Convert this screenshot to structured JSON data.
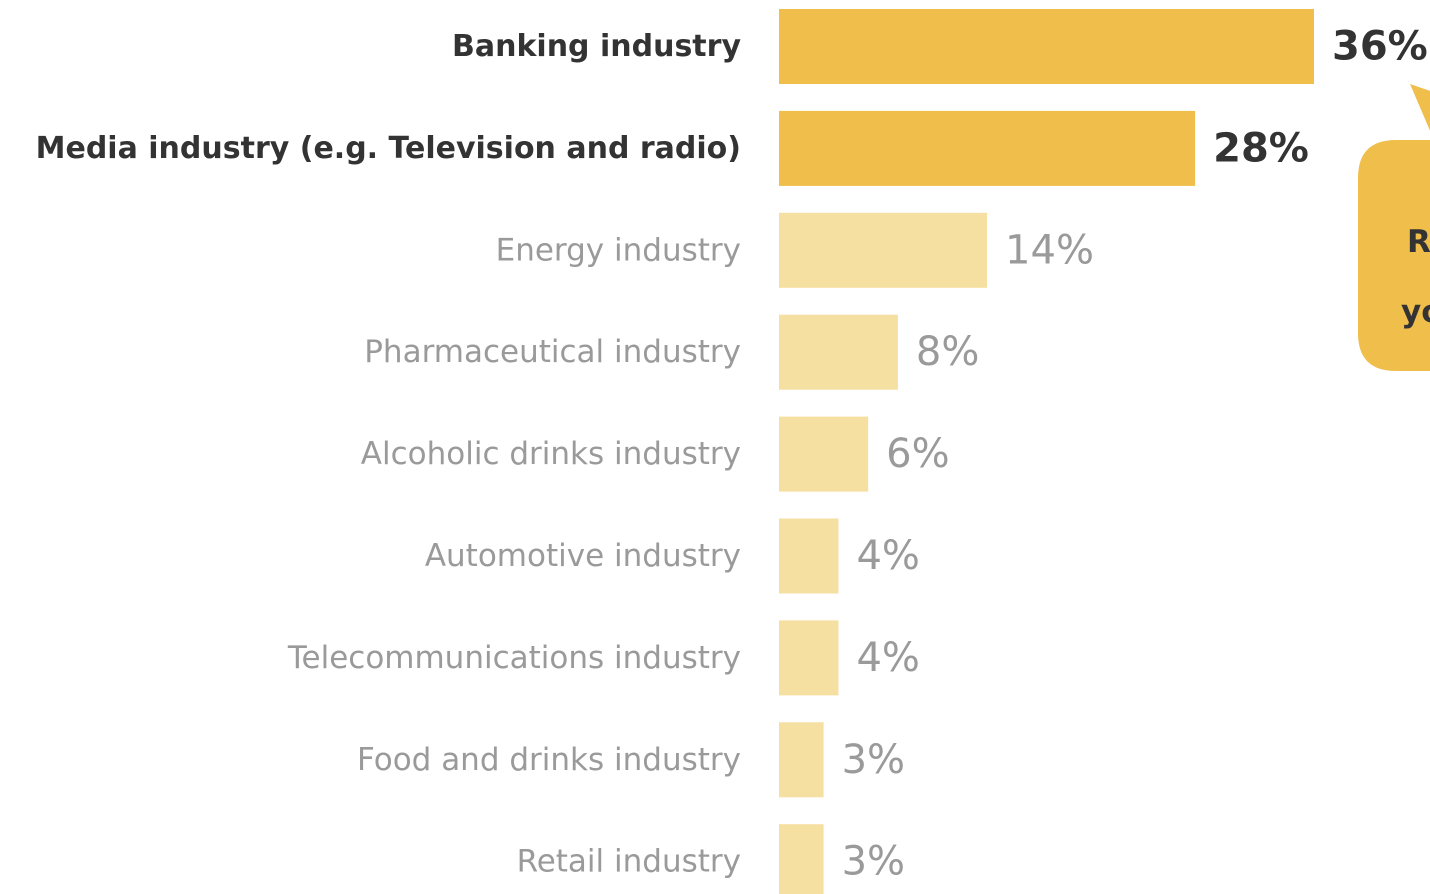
{
  "chart_data": {
    "type": "bar",
    "orientation": "horizontal",
    "categories": [
      "Banking industry",
      "Media industry (e.g. Television and radio)",
      "Energy industry",
      "Pharmaceutical industry",
      "Alcoholic drinks industry",
      "Automotive industry",
      "Telecommunications industry",
      "Food and drinks industry",
      "Retail industry"
    ],
    "values": [
      36,
      28,
      14,
      8,
      6,
      4,
      4,
      3,
      3
    ],
    "value_labels": [
      "36%",
      "28%",
      "14%",
      "8%",
      "6%",
      "4%",
      "4%",
      "3%",
      "3%"
    ],
    "highlighted": [
      true,
      true,
      false,
      false,
      false,
      false,
      false,
      false,
      false
    ],
    "title": "",
    "xlabel": "",
    "ylabel": "",
    "xlim": [
      0,
      36
    ],
    "grid": false,
    "legend": "none"
  },
  "callout": {
    "line1": "R",
    "line2": "yo"
  },
  "colors": {
    "highlight_bar": "#F0BE4B",
    "muted_bar": "#F5DFA1",
    "highlight_text": "#333333",
    "muted_text": "#9A9A9A",
    "callout_fill": "#F0BE4B"
  }
}
